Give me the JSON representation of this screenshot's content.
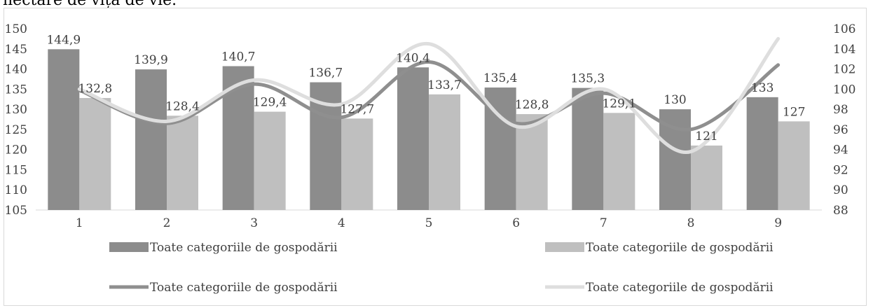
{
  "page_text": "nectare de viță de vie.",
  "colors": {
    "bar_dark": "#8c8c8c",
    "bar_light": "#bfbfbf",
    "line_dark": "#8f8f8f",
    "line_light": "#dedede",
    "gridline": "#d9d9d9",
    "axis_text": "#404040"
  },
  "chart_data": {
    "type": "bar",
    "categories": [
      "1",
      "2",
      "3",
      "4",
      "5",
      "6",
      "7",
      "8",
      "9"
    ],
    "series": [
      {
        "name": "Toate categoriile de gospodării",
        "kind": "bar",
        "axis": "left",
        "color": "#8c8c8c",
        "values": [
          144.9,
          139.9,
          140.7,
          136.7,
          140.4,
          135.4,
          135.3,
          130,
          133
        ],
        "labels": [
          "144,9",
          "139,9",
          "140,7",
          "136,7",
          "140,4",
          "135,4",
          "135,3",
          "130",
          "133"
        ]
      },
      {
        "name": "Toate categoriile de gospodării",
        "kind": "bar",
        "axis": "left",
        "color": "#bfbfbf",
        "values": [
          132.8,
          128.4,
          129.4,
          127.7,
          133.7,
          128.8,
          129.1,
          121,
          127
        ],
        "labels": [
          "132,8",
          "128,4",
          "129,4",
          "127,7",
          "133,7",
          "128,8",
          "129,1",
          "121",
          "127"
        ]
      },
      {
        "name": "Toate categoriile de gospodării",
        "kind": "line",
        "axis": "right",
        "color": "#8f8f8f",
        "values": [
          99.9,
          96.6,
          100.5,
          97.2,
          102.7,
          96.6,
          99.6,
          96.0,
          102.4
        ]
      },
      {
        "name": "Toate categoriile de gospodării",
        "kind": "line",
        "axis": "right",
        "color": "#dedede",
        "values": [
          100.0,
          96.8,
          100.9,
          98.5,
          104.5,
          96.3,
          100.0,
          93.8,
          105.0
        ]
      }
    ],
    "y_left": {
      "min": 105,
      "max": 150,
      "step": 5,
      "ticks": [
        "105",
        "110",
        "115",
        "120",
        "125",
        "130",
        "135",
        "140",
        "145",
        "150"
      ]
    },
    "y_right": {
      "min": 88,
      "max": 106,
      "step": 2,
      "ticks": [
        "88",
        "90",
        "92",
        "94",
        "96",
        "98",
        "100",
        "102",
        "104",
        "106"
      ]
    },
    "grid": false,
    "legend_position": "bottom",
    "title": ""
  }
}
